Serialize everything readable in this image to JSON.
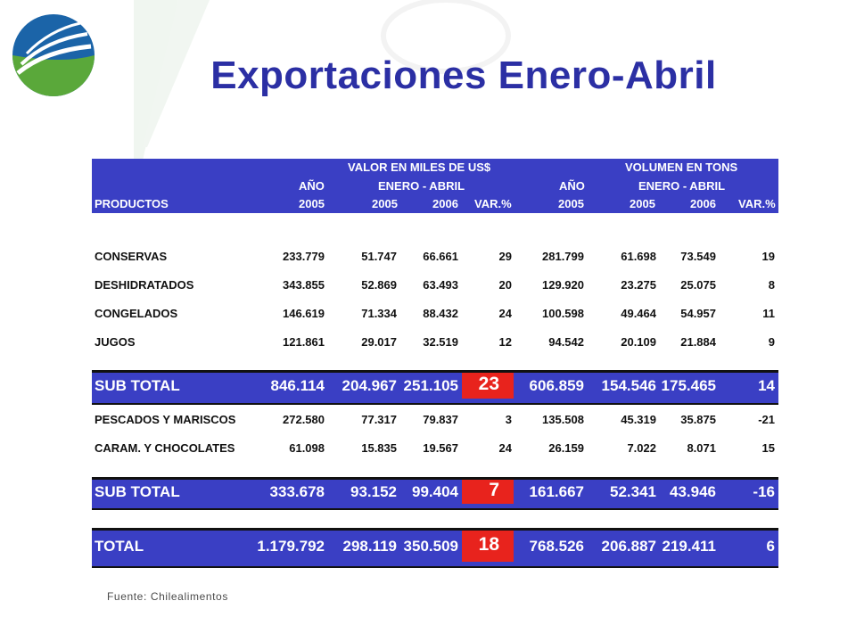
{
  "title": "Exportaciones Enero-Abril",
  "source": "Fuente: Chilealimentos",
  "colors": {
    "title": "#2b2fa4",
    "header": "#3a3fc4",
    "highlight": "#e8231d",
    "logo_blue": "#1b64a8",
    "logo_green": "#5aa83a"
  },
  "header": {
    "valor_group": "VALOR EN MILES DE US$",
    "volumen_group": "VOLUMEN EN TONS",
    "ano": "AÑO",
    "enero_abril": "ENERO - ABRIL",
    "productos": "PRODUCTOS",
    "y2005": "2005",
    "y2006": "2006",
    "var": "VAR.%"
  },
  "rows": [
    {
      "name": "CONSERVAS",
      "c": [
        "233.779",
        "51.747",
        "66.661",
        "29",
        "281.799",
        "61.698",
        "73.549",
        "19"
      ]
    },
    {
      "name": "DESHIDRATADOS",
      "c": [
        "343.855",
        "52.869",
        "63.493",
        "20",
        "129.920",
        "23.275",
        "25.075",
        "8"
      ]
    },
    {
      "name": "CONGELADOS",
      "c": [
        "146.619",
        "71.334",
        "88.432",
        "24",
        "100.598",
        "49.464",
        "54.957",
        "11"
      ]
    },
    {
      "name": "JUGOS",
      "c": [
        "121.861",
        "29.017",
        "32.519",
        "12",
        "94.542",
        "20.109",
        "21.884",
        "9"
      ]
    }
  ],
  "subtotal1": {
    "name": "SUB TOTAL",
    "c": [
      "846.114",
      "204.967",
      "251.105",
      "23",
      "606.859",
      "154.546",
      "175.465",
      "14"
    ]
  },
  "rows2": [
    {
      "name": "PESCADOS Y MARISCOS",
      "c": [
        "272.580",
        "77.317",
        "79.837",
        "3",
        "135.508",
        "45.319",
        "35.875",
        "-21"
      ]
    },
    {
      "name": "CARAM. Y CHOCOLATES",
      "c": [
        "61.098",
        "15.835",
        "19.567",
        "24",
        "26.159",
        "7.022",
        "8.071",
        "15"
      ]
    }
  ],
  "subtotal2": {
    "name": "SUB TOTAL",
    "c": [
      "333.678",
      "93.152",
      "99.404",
      "7",
      "161.667",
      "52.341",
      "43.946",
      "-16"
    ]
  },
  "total": {
    "name": "TOTAL",
    "c": [
      "1.179.792",
      "298.119",
      "350.509",
      "18",
      "768.526",
      "206.887",
      "219.411",
      "6"
    ]
  }
}
